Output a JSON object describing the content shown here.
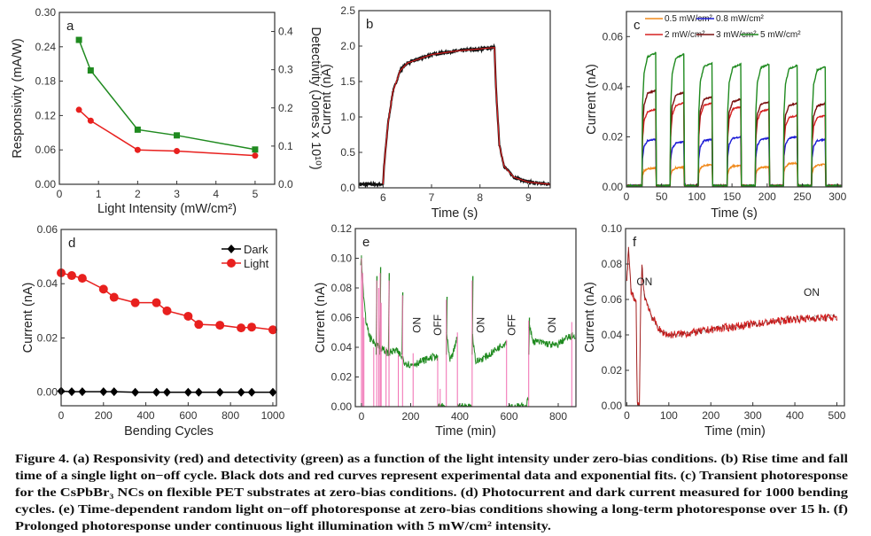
{
  "chart_data": [
    {
      "id": "a",
      "type": "line",
      "panel_label": "a",
      "xlabel": "Light Intensity (mW/cm²)",
      "ylabel": "Responsivity (mA/W)",
      "ylabel_right": "Detectivity (Jones x 10¹⁰)",
      "xlim": [
        0,
        5.5
      ],
      "ylim": [
        0,
        0.3
      ],
      "ylim_right": [
        0,
        0.45
      ],
      "xticks": [
        "0",
        "1",
        "2",
        "3",
        "4",
        "5"
      ],
      "xtick_values": [
        0,
        1,
        2,
        3,
        4,
        5
      ],
      "yticks": [
        "0.00",
        "0.06",
        "0.12",
        "0.18",
        "0.24",
        "0.30"
      ],
      "ytick_values": [
        0,
        0.06,
        0.12,
        0.18,
        0.24,
        0.3
      ],
      "yticks_right": [
        "0.0",
        "0.1",
        "0.2",
        "0.3",
        "0.4"
      ],
      "ytick_values_right": [
        0,
        0.1,
        0.2,
        0.3,
        0.4
      ],
      "series": [
        {
          "name": "Responsivity",
          "axis": "left",
          "color": "#e8201e",
          "marker": "circle",
          "x": [
            0.5,
            0.8,
            2,
            3,
            5
          ],
          "y": [
            0.13,
            0.111,
            0.06,
            0.058,
            0.05
          ]
        },
        {
          "name": "Detectivity",
          "axis": "right",
          "color": "#1f8a1f",
          "marker": "square",
          "x": [
            0.5,
            0.8,
            2,
            3,
            5
          ],
          "y": [
            0.378,
            0.298,
            0.143,
            0.128,
            0.091
          ]
        }
      ]
    },
    {
      "id": "b",
      "type": "line",
      "panel_label": "b",
      "xlabel": "Time (s)",
      "ylabel": "Current (nA)",
      "xlim": [
        5.5,
        9.45
      ],
      "ylim": [
        0,
        2.5
      ],
      "xticks": [
        "6",
        "7",
        "8",
        "9"
      ],
      "xtick_values": [
        6,
        7,
        8,
        9
      ],
      "yticks": [
        "0.0",
        "0.5",
        "1.0",
        "1.5",
        "2.0",
        "2.5"
      ],
      "ytick_values": [
        0,
        0.5,
        1,
        1.5,
        2,
        2.5
      ],
      "series": [
        {
          "name": "Experimental data",
          "color": "#111111",
          "noise": 0.015,
          "points": [
            [
              5.5,
              0.05
            ],
            [
              6.0,
              0.05
            ],
            [
              6.02,
              0.3
            ],
            [
              6.1,
              0.9
            ],
            [
              6.2,
              1.35
            ],
            [
              6.35,
              1.65
            ],
            [
              6.5,
              1.76
            ],
            [
              7.0,
              1.88
            ],
            [
              7.5,
              1.93
            ],
            [
              8.0,
              1.96
            ],
            [
              8.3,
              1.98
            ],
            [
              8.33,
              1.4
            ],
            [
              8.4,
              0.6
            ],
            [
              8.5,
              0.3
            ],
            [
              8.7,
              0.15
            ],
            [
              9.0,
              0.08
            ],
            [
              9.45,
              0.05
            ]
          ]
        },
        {
          "name": "Exponential fit",
          "color": "#d42020",
          "noise": 0,
          "points": [
            [
              6.0,
              0.05
            ],
            [
              6.02,
              0.3
            ],
            [
              6.1,
              0.9
            ],
            [
              6.2,
              1.35
            ],
            [
              6.35,
              1.65
            ],
            [
              6.5,
              1.76
            ],
            [
              7.0,
              1.88
            ],
            [
              7.5,
              1.93
            ],
            [
              8.0,
              1.96
            ],
            [
              8.3,
              1.98
            ],
            [
              8.33,
              1.4
            ],
            [
              8.4,
              0.6
            ],
            [
              8.5,
              0.3
            ],
            [
              8.7,
              0.15
            ],
            [
              9.0,
              0.08
            ],
            [
              9.45,
              0.05
            ]
          ]
        }
      ]
    },
    {
      "id": "c",
      "type": "line",
      "panel_label": "c",
      "xlabel": "Time (s)",
      "ylabel": "Current (nA)",
      "xlim": [
        0,
        306
      ],
      "ylim": [
        0,
        0.07
      ],
      "xticks": [
        "0",
        "50",
        "100",
        "150",
        "200",
        "250",
        "300"
      ],
      "xtick_values": [
        0,
        50,
        100,
        150,
        200,
        250,
        300
      ],
      "yticks": [
        "0.00",
        "0.02",
        "0.04",
        "0.06"
      ],
      "ytick_values": [
        0,
        0.02,
        0.04,
        0.06
      ],
      "pulse_on": [
        22,
        62,
        102,
        143,
        183,
        223,
        263
      ],
      "pulse_duration": 20,
      "series": [
        {
          "name": "0.5 mW/cm²",
          "color": "#f08a1c",
          "levels": [
            0.0075,
            0.0078,
            0.0088,
            0.0085,
            0.008,
            0.0095,
            0.009
          ]
        },
        {
          "name": "0.8 mW/cm²",
          "color": "#1c1cd6",
          "levels": [
            0.019,
            0.018,
            0.019,
            0.02,
            0.0195,
            0.02,
            0.019
          ]
        },
        {
          "name": "2 mW/cm²",
          "color": "#d62020",
          "levels": [
            0.031,
            0.0335,
            0.0335,
            0.032,
            0.031,
            0.0285,
            0.0285
          ]
        },
        {
          "name": "3 mW/cm²",
          "color": "#7a1010",
          "levels": [
            0.0385,
            0.0377,
            0.036,
            0.035,
            0.034,
            0.0335,
            0.0333
          ]
        },
        {
          "name": "5 mW/cm²",
          "color": "#1f8a1f",
          "levels": [
            0.0535,
            0.053,
            0.0495,
            0.049,
            0.049,
            0.0485,
            0.048
          ]
        }
      ]
    },
    {
      "id": "d",
      "type": "line",
      "panel_label": "d",
      "xlabel": "Bending Cycles",
      "ylabel": "Current (nA)",
      "xlim": [
        0,
        1017
      ],
      "ylim": [
        -0.005,
        0.06
      ],
      "xticks": [
        "0",
        "200",
        "400",
        "600",
        "800",
        "1000"
      ],
      "xtick_values": [
        0,
        200,
        400,
        600,
        800,
        1000
      ],
      "yticks": [
        "0.00",
        "0.02",
        "0.04",
        "0.06"
      ],
      "ytick_values": [
        0,
        0.02,
        0.04,
        0.06
      ],
      "legend": "top-right",
      "series": [
        {
          "name": "Dark",
          "color": "#000000",
          "marker": "diamond",
          "x": [
            0,
            50,
            100,
            200,
            250,
            350,
            450,
            500,
            600,
            650,
            750,
            850,
            900,
            1000
          ],
          "y": [
            0.0004,
            0.0002,
            0.0002,
            0.0002,
            0.0002,
            0,
            0,
            0,
            0,
            0,
            0,
            0,
            0,
            0
          ]
        },
        {
          "name": "Light",
          "color": "#e8201e",
          "marker": "circle",
          "x": [
            0,
            50,
            100,
            200,
            250,
            350,
            450,
            500,
            600,
            650,
            750,
            850,
            900,
            1000
          ],
          "y": [
            0.044,
            0.043,
            0.042,
            0.038,
            0.035,
            0.033,
            0.033,
            0.03,
            0.028,
            0.025,
            0.0247,
            0.0237,
            0.024,
            0.023
          ]
        }
      ]
    },
    {
      "id": "e",
      "type": "line",
      "panel_label": "e",
      "xlabel": "Time (min)",
      "ylabel": "Current (nA)",
      "xlim": [
        -25,
        872
      ],
      "ylim": [
        0,
        0.12
      ],
      "xticks": [
        "0",
        "200",
        "400",
        "600",
        "800"
      ],
      "xtick_values": [
        0,
        200,
        400,
        600,
        800
      ],
      "yticks": [
        "0.00",
        "0.02",
        "0.04",
        "0.06",
        "0.08",
        "0.10",
        "0.12"
      ],
      "ytick_values": [
        0,
        0.02,
        0.04,
        0.06,
        0.08,
        0.1,
        0.12
      ],
      "series": [
        {
          "name": "Photoresponse",
          "color": "#1f8a1f",
          "noise": 0.0025,
          "segments": [
            [
              [
                -3,
                0.095
              ],
              [
                0,
                0.1
              ],
              [
                8,
                0.075
              ],
              [
                18,
                0.058
              ],
              [
                35,
                0.046
              ],
              [
                60,
                0.042
              ],
              [
                90,
                0.038
              ],
              [
                110,
                0.036
              ],
              [
                140,
                0.038
              ],
              [
                168,
                0.033
              ],
              [
                175,
                0.03
              ],
              [
                200,
                0.028
              ],
              [
                250,
                0.031
              ],
              [
                300,
                0.034
              ],
              [
                310,
                0.032
              ]
            ],
            [
              [
                310,
                0.0
              ],
              [
                343,
                0.0
              ]
            ],
            [
              [
                345,
                0.05
              ],
              [
                360,
                0.03
              ],
              [
                380,
                0.04
              ],
              [
                390,
                0.048
              ]
            ],
            [
              [
                390,
                0.0
              ],
              [
                448,
                0.0
              ]
            ],
            [
              [
                450,
                0.05
              ],
              [
                465,
                0.03
              ],
              [
                520,
                0.035
              ],
              [
                590,
                0.044
              ]
            ],
            [
              [
                592,
                0.0
              ],
              [
                670,
                0.0
              ],
              [
                678,
                0.006
              ]
            ],
            [
              [
                680,
                0.055
              ],
              [
                700,
                0.044
              ],
              [
                740,
                0.043
              ],
              [
                790,
                0.041
              ],
              [
                830,
                0.046
              ],
              [
                870,
                0.048
              ]
            ]
          ],
          "spikes": [
            [
              60,
              0.088
            ],
            [
              75,
              0.094
            ],
            [
              110,
              0.09
            ],
            [
              165,
              0.077
            ],
            [
              345,
              0.074
            ],
            [
              450,
              0.088
            ],
            [
              680,
              0.06
            ]
          ]
        },
        {
          "name": "Transitions",
          "color": "#f06bb0",
          "lines": [
            [
              0,
              0.1
            ],
            [
              5,
              0.09
            ],
            [
              10,
              0.06
            ],
            [
              50,
              0.04
            ],
            [
              62,
              0.085
            ],
            [
              70,
              0.08
            ],
            [
              76,
              0.09
            ],
            [
              80,
              0.07
            ],
            [
              100,
              0.04
            ],
            [
              112,
              0.085
            ],
            [
              150,
              0.035
            ],
            [
              167,
              0.075
            ],
            [
              210,
              0.036
            ],
            [
              310,
              0.033
            ],
            [
              320,
              0.012
            ],
            [
              345,
              0.072
            ],
            [
              390,
              0.05
            ],
            [
              450,
              0.085
            ],
            [
              590,
              0.045
            ],
            [
              680,
              0.058
            ],
            [
              855,
              0.057
            ]
          ]
        }
      ],
      "annotations": [
        {
          "text": "ON",
          "x": 240,
          "y": 0.055
        },
        {
          "text": "OFF",
          "x": 325,
          "y": 0.055
        },
        {
          "text": "ON",
          "x": 500,
          "y": 0.055
        },
        {
          "text": "OFF",
          "x": 625,
          "y": 0.055
        },
        {
          "text": "ON",
          "x": 790,
          "y": 0.055
        }
      ]
    },
    {
      "id": "f",
      "type": "line",
      "panel_label": "f",
      "xlabel": "Time (min)",
      "ylabel": "Current (nA)",
      "xlim": [
        -3,
        518
      ],
      "ylim": [
        0,
        0.1
      ],
      "xticks": [
        "0",
        "100",
        "200",
        "300",
        "400",
        "500"
      ],
      "xtick_values": [
        0,
        100,
        200,
        300,
        400,
        500
      ],
      "yticks": [
        "0.00",
        "0.02",
        "0.04",
        "0.06",
        "0.08",
        "0.10"
      ],
      "ytick_values": [
        0,
        0.02,
        0.04,
        0.06,
        0.08,
        0.1
      ],
      "series": [
        {
          "name": "Photoresponse",
          "color": "#d42020",
          "noise": 0.0022,
          "points": [
            [
              0,
              0.07
            ],
            [
              4,
              0.088
            ],
            [
              10,
              0.065
            ],
            [
              22,
              0.058
            ],
            [
              25,
              0.0
            ],
            [
              30,
              0.0
            ],
            [
              33,
              0.06
            ],
            [
              36,
              0.078
            ],
            [
              42,
              0.062
            ],
            [
              60,
              0.05
            ],
            [
              80,
              0.042
            ],
            [
              100,
              0.04
            ],
            [
              150,
              0.041
            ],
            [
              200,
              0.043
            ],
            [
              300,
              0.046
            ],
            [
              400,
              0.049
            ],
            [
              500,
              0.05
            ]
          ]
        }
      ],
      "annotations": [
        {
          "text": "ON",
          "x": 42,
          "y": 0.068
        },
        {
          "text": "ON",
          "x": 440,
          "y": 0.062
        }
      ]
    }
  ],
  "caption": {
    "lines": [
      "Figure 4. (a) Responsivity (red) and detectivity (green) as a function of the light intensity under zero-bias conditions. (b) Rise time and fall",
      "time of a single light on−off cycle. Black dots and red curves represent experimental data and exponential fits. (c) Transient photoresponse",
      "for the CsPbBr₃ NCs on flexible PET substrates at zero-bias conditions. (d) Photocurrent and dark current measured for 1000 bending",
      "cycles. (e) Time-dependent random light on−off photoresponse at zero-bias conditions showing a long-term photoresponse over 15 h. (f)",
      "Prolonged photoresponse under continuous light illumination with 5 mW/cm² intensity."
    ]
  }
}
